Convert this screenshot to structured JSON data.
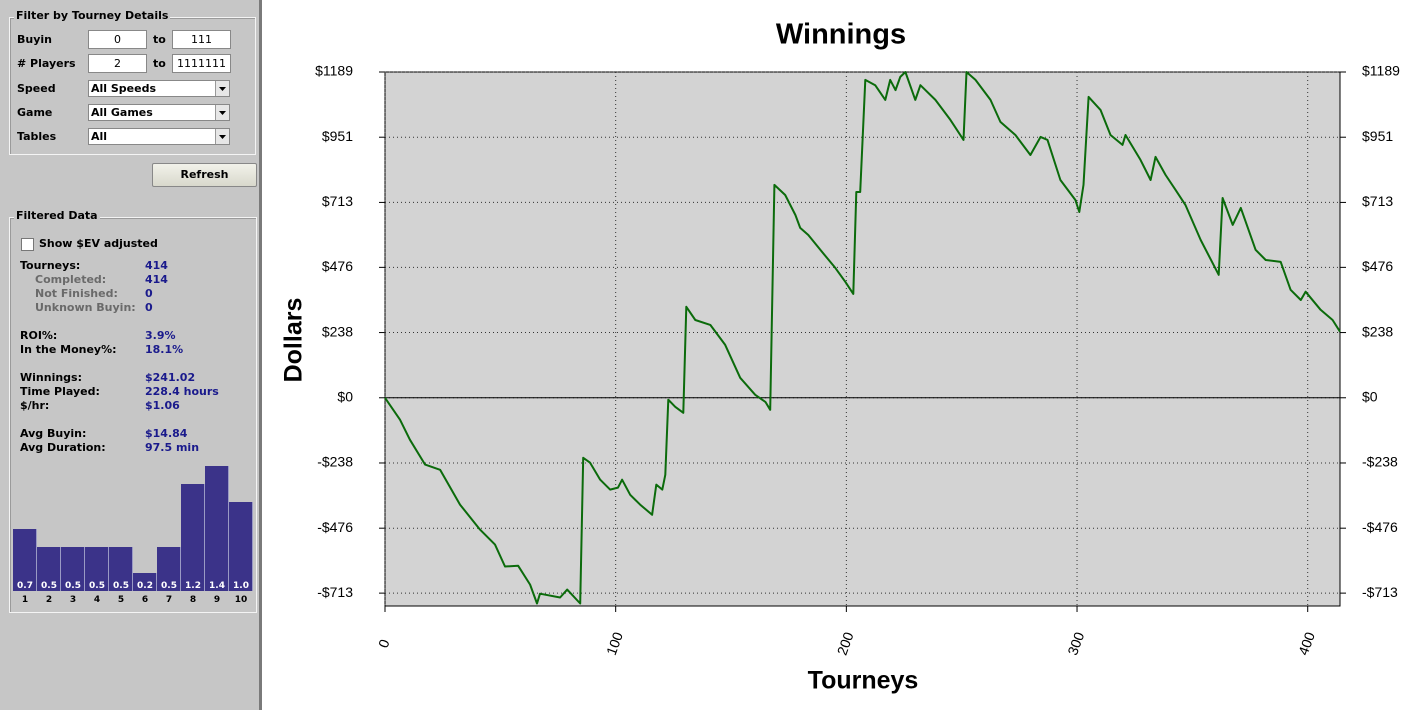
{
  "filter": {
    "title": "Filter by Tourney Details",
    "rows": [
      {
        "label": "Buyin",
        "from": "0",
        "sep": "to",
        "to": "111"
      },
      {
        "label": "# Players",
        "from": "2",
        "sep": "to",
        "to": "1111111"
      },
      {
        "label": "Speed",
        "select": "All Speeds"
      },
      {
        "label": "Game",
        "select": "All Games"
      },
      {
        "label": "Tables",
        "select": "All"
      }
    ],
    "refresh": "Refresh"
  },
  "filtered": {
    "title": "Filtered Data",
    "checkbox": "Show $EV adjusted",
    "stats": [
      [
        {
          "label": "Tourneys:",
          "value": "414",
          "details": [
            {
              "label": "Completed:",
              "value": "414"
            },
            {
              "label": "Not Finished:",
              "value": "0"
            },
            {
              "label": "Unknown Buyin:",
              "value": "0"
            }
          ]
        }
      ],
      [
        {
          "label": "ROI%:",
          "value": "3.9%"
        },
        {
          "label": "In the Money%:",
          "value": "18.1%"
        }
      ],
      [
        {
          "label": "Winnings:",
          "value": "$241.02"
        },
        {
          "label": "Time Played:",
          "value": "228.4 hours"
        },
        {
          "label": "$/hr:",
          "value": "$1.06"
        }
      ],
      [
        {
          "label": "Avg Buyin:",
          "value": "$14.84"
        },
        {
          "label": "Avg Duration:",
          "value": "97.5 min"
        }
      ]
    ],
    "histogram": {
      "categories": [
        "1",
        "2",
        "3",
        "4",
        "5",
        "6",
        "7",
        "8",
        "9",
        "10"
      ],
      "values": [
        0.7,
        0.5,
        0.5,
        0.5,
        0.5,
        0.2,
        0.5,
        1.2,
        1.4,
        1.0
      ],
      "value_labels": [
        "0.7",
        "0.5",
        "0.5",
        "0.5",
        "0.5",
        "0.2",
        "0.5",
        "1.2",
        "1.4",
        "1.0"
      ]
    }
  },
  "chart_data": {
    "type": "line",
    "title": "Winnings",
    "x_label": "Tourneys",
    "y_label": "Dollars",
    "color": "#0b6b0b",
    "grid": true,
    "xlim": [
      0,
      414
    ],
    "xticks": [
      0,
      100,
      200,
      300,
      400
    ],
    "ylim": [
      -760,
      1189
    ],
    "yticks": [
      {
        "value": 1189,
        "label": "$1189"
      },
      {
        "value": 951,
        "label": "$951"
      },
      {
        "value": 713,
        "label": "$713"
      },
      {
        "value": 476,
        "label": "$476"
      },
      {
        "value": 238,
        "label": "$238"
      },
      {
        "value": 0,
        "label": "$0"
      },
      {
        "value": -238,
        "label": "-$238"
      },
      {
        "value": -476,
        "label": "-$476"
      },
      {
        "value": -713,
        "label": "-$713"
      }
    ],
    "x": [
      0,
      6.5,
      10.8,
      17.4,
      23.9,
      32.5,
      41.2,
      47.7,
      52,
      57.7,
      62.9,
      65.9,
      67.2,
      75.9,
      79,
      84.6,
      85.9,
      88.9,
      93.3,
      97.6,
      101,
      102.8,
      106.3,
      110.6,
      115.8,
      117.6,
      120.2,
      121.5,
      122.8,
      125.8,
      129.3,
      130.6,
      134.5,
      141,
      147.5,
      154,
      160.5,
      164.9,
      167,
      168.8,
      173.5,
      177.9,
      180,
      183.5,
      188.7,
      195.2,
      199.6,
      203,
      204.3,
      206,
      208.2,
      212.5,
      216.9,
      219,
      221.3,
      223.4,
      225.6,
      229.9,
      232.1,
      238.6,
      245.1,
      250.8,
      252.1,
      256,
      262.5,
      266.8,
      273.3,
      279.8,
      284.2,
      287.2,
      292.8,
      299.3,
      301,
      302.8,
      305,
      310.2,
      314.5,
      319.7,
      321,
      327.5,
      331.9,
      334,
      338.4,
      342.7,
      347,
      353.6,
      361.4,
      363.1,
      367.5,
      371,
      377.4,
      381.8,
      388.3,
      392.6,
      397,
      399.1,
      405.6,
      410.8,
      414
    ],
    "values": [
      0,
      -80,
      -153,
      -244,
      -263,
      -390,
      -481,
      -536,
      -616,
      -613,
      -682,
      -751,
      -715,
      -729,
      -700,
      -751,
      -219,
      -237,
      -299,
      -335,
      -328,
      -299,
      -354,
      -390,
      -427,
      -317,
      -335,
      -281,
      -7,
      -33,
      -55,
      332,
      284,
      266,
      193,
      73,
      11,
      -15,
      -44,
      777,
      740,
      667,
      620,
      594,
      540,
      474,
      423,
      379,
      751,
      751,
      1160,
      1141,
      1087,
      1160,
      1123,
      1171,
      1189,
      1087,
      1141,
      1087,
      1014,
      941,
      1189,
      1160,
      1087,
      1007,
      959,
      886,
      952,
      941,
      795,
      722,
      678,
      777,
      1098,
      1050,
      959,
      923,
      959,
      868,
      795,
      879,
      813,
      759,
      704,
      576,
      449,
      729,
      631,
      693,
      540,
      503,
      496,
      394,
      357,
      387,
      321,
      284,
      241
    ]
  }
}
